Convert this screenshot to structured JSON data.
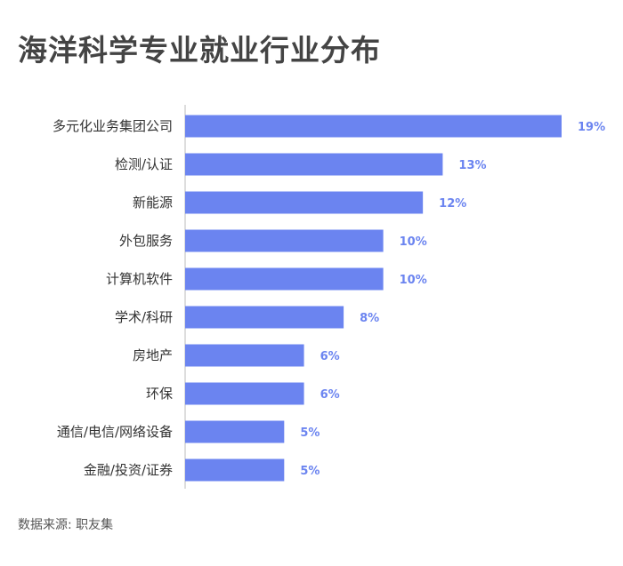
{
  "colors": {
    "bar": "#6b84f0",
    "title": "#444444"
  },
  "chart_data": {
    "type": "bar",
    "orientation": "horizontal",
    "title": "海洋科学专业就业行业分布",
    "categories": [
      "多元化业务集团公司",
      "检测/认证",
      "新能源",
      "外包服务",
      "计算机软件",
      "学术/科研",
      "房地产",
      "环保",
      "通信/电信/网络设备",
      "金融/投资/证券"
    ],
    "values": [
      19,
      13,
      12,
      10,
      10,
      8,
      6,
      6,
      5,
      5
    ],
    "value_labels": [
      "19%",
      "13%",
      "12%",
      "10%",
      "10%",
      "8%",
      "6%",
      "6%",
      "5%",
      "5%"
    ],
    "xlim": [
      0,
      19
    ],
    "xlabel": "",
    "ylabel": "",
    "grid": false,
    "source": "数据来源: 职友集"
  }
}
